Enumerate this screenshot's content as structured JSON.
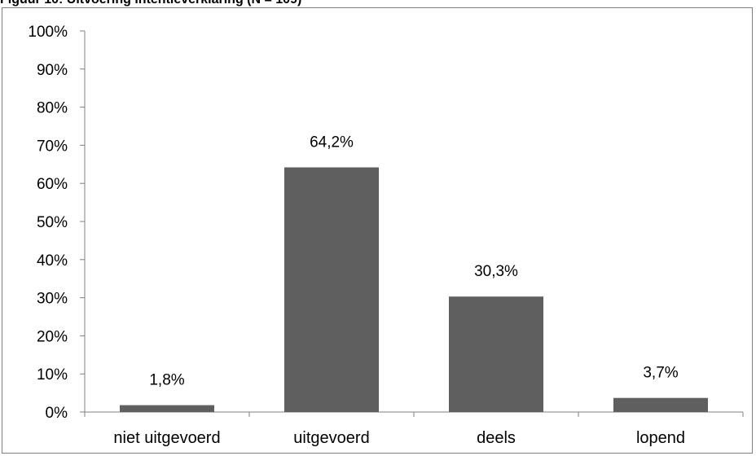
{
  "figure": {
    "title": "Figuur 10: Uitvoering intentieverklaring (N = 109)"
  },
  "colors": {
    "bar": "#5f5f5f",
    "axis": "#808080",
    "text": "#000000"
  },
  "chart_data": {
    "type": "bar",
    "title": "",
    "xlabel": "",
    "ylabel": "",
    "categories": [
      "niet uitgevoerd",
      "uitgevoerd",
      "deels",
      "lopend"
    ],
    "values": [
      1.8,
      64.2,
      30.3,
      3.7
    ],
    "value_labels": [
      "1,8%",
      "64,2%",
      "30,3%",
      "3,7%"
    ],
    "ylim": [
      0,
      100
    ],
    "yticks": [
      0,
      10,
      20,
      30,
      40,
      50,
      60,
      70,
      80,
      90,
      100
    ],
    "ytick_labels": [
      "0%",
      "10%",
      "20%",
      "30%",
      "40%",
      "50%",
      "60%",
      "70%",
      "80%",
      "90%",
      "100%"
    ],
    "grid": false,
    "legend": "none"
  }
}
